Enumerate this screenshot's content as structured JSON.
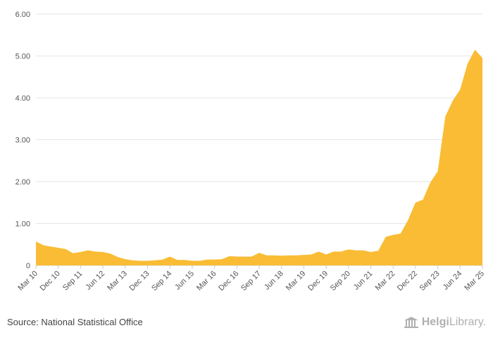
{
  "chart_data": {
    "type": "area",
    "title": "",
    "xlabel": "",
    "ylabel": "",
    "ylim": [
      0,
      6
    ],
    "yticks": [
      "0",
      "1.00",
      "2.00",
      "3.00",
      "4.00",
      "5.00",
      "6.00"
    ],
    "x_tick_labels": [
      "Mar 10",
      "Dec 10",
      "Sep 11",
      "Jun 12",
      "Mar 13",
      "Dec 13",
      "Sep 14",
      "Jun 15",
      "Mar 16",
      "Dec 16",
      "Sep 17",
      "Jun 18",
      "Mar 19",
      "Dec 19",
      "Sep 20",
      "Jun 21",
      "Mar 22",
      "Dec 22",
      "Sep 23",
      "Jun 24",
      "Mar 25"
    ],
    "color": "#f9bc34",
    "values": [
      0.57,
      0.48,
      0.45,
      0.42,
      0.39,
      0.29,
      0.32,
      0.36,
      0.33,
      0.32,
      0.28,
      0.2,
      0.15,
      0.12,
      0.11,
      0.11,
      0.12,
      0.14,
      0.21,
      0.13,
      0.13,
      0.11,
      0.11,
      0.14,
      0.14,
      0.15,
      0.22,
      0.21,
      0.21,
      0.21,
      0.3,
      0.24,
      0.24,
      0.23,
      0.24,
      0.24,
      0.25,
      0.26,
      0.33,
      0.26,
      0.33,
      0.33,
      0.38,
      0.36,
      0.36,
      0.32,
      0.35,
      0.68,
      0.73,
      0.76,
      1.08,
      1.5,
      1.57,
      1.98,
      2.25,
      3.55,
      3.93,
      4.2,
      4.82,
      5.15,
      4.95
    ]
  },
  "footer": {
    "source": "Source: National Statistical Office",
    "logo_bold": "Helgi",
    "logo_light": "Library."
  }
}
